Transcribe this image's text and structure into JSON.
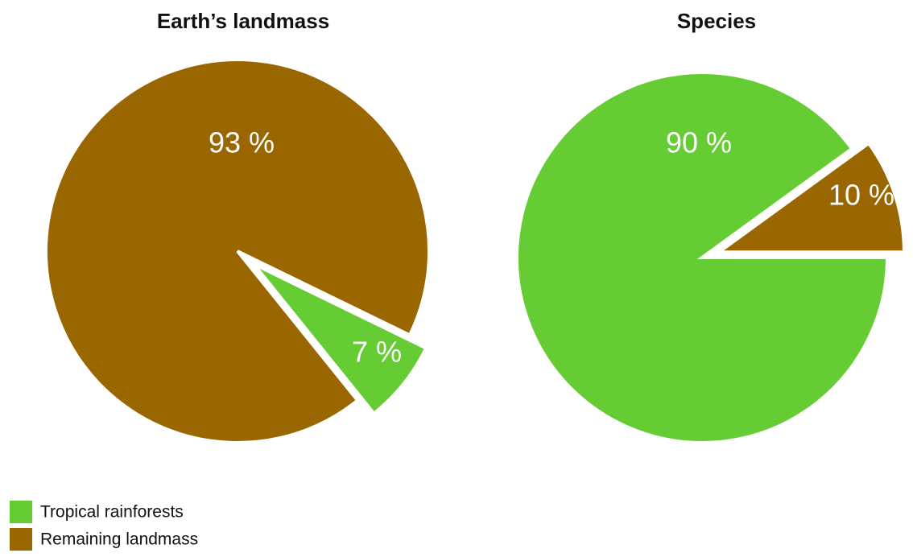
{
  "chart_data": [
    {
      "type": "pie",
      "title": "Earth’s landmass",
      "categories": [
        "Tropical rainforests",
        "Remaining landmass"
      ],
      "values": [
        7,
        93
      ],
      "value_labels": [
        "7 %",
        "93 %"
      ],
      "colors": [
        "#66cc33",
        "#996600"
      ],
      "legend": "bottom-left"
    },
    {
      "type": "pie",
      "title": "Species",
      "values": [
        90,
        10
      ],
      "value_labels": [
        "90 %",
        "10 %"
      ],
      "colors": [
        "#66cc33",
        "#996600"
      ]
    }
  ]
}
